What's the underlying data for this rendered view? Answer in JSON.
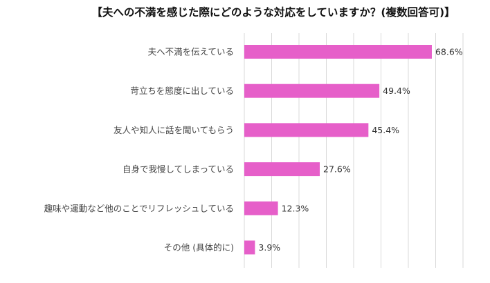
{
  "chart_data": {
    "type": "bar",
    "orientation": "horizontal",
    "title": "【夫への不満を感じた際にどのような対応をしていますか？(複数回答可)】",
    "categories": [
      "夫へ不満を伝えている",
      "苛立ちを態度に出している",
      "友人や知人に話を聞いてもらう",
      "自身で我慢してしまっている",
      "趣味や運動など他のことでリフレッシュしている",
      "その他 (具体的に)"
    ],
    "values": [
      68.6,
      49.4,
      45.4,
      27.6,
      12.3,
      3.9
    ],
    "data_labels": [
      "68.6%",
      "49.4%",
      "45.4%",
      "27.6%",
      "12.3%",
      "3.9%"
    ],
    "xlabel": "",
    "ylabel": "",
    "xlim": [
      0,
      80
    ],
    "grid_step": 10,
    "grid": true,
    "legend": "none",
    "bar_color": "#e65fc9"
  }
}
